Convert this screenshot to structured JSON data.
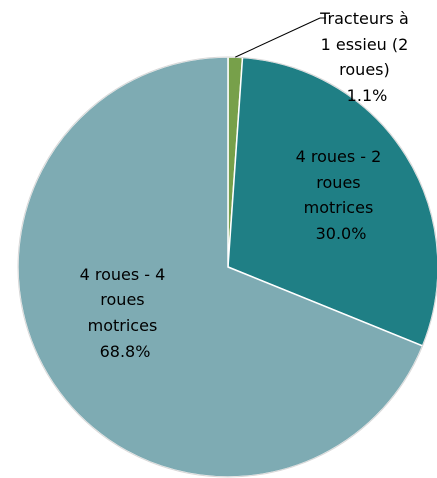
{
  "chart_data": {
    "type": "pie",
    "title": "",
    "legend": "none",
    "slices": [
      {
        "name": "Tracteurs à 1 essieu (2 roues)",
        "value": 1.1,
        "percent_label": "1.1%",
        "color": "#77a04a",
        "label_lines": [
          "Tracteurs à",
          "1 essieu (2",
          "roues)",
          "1.1%"
        ]
      },
      {
        "name": "4 roues - 2 roues motrices",
        "value": 30.0,
        "percent_label": "30.0%",
        "color": "#1f7f85",
        "label_lines": [
          "4 roues - 2",
          "roues",
          "motrices",
          "30.0%"
        ]
      },
      {
        "name": "4 roues - 4 roues motrices",
        "value": 68.8,
        "percent_label": "68.8%",
        "color": "#7eabb3",
        "label_lines": [
          "4 roues - 4",
          "roues",
          "motrices",
          "68.8%"
        ]
      }
    ]
  }
}
